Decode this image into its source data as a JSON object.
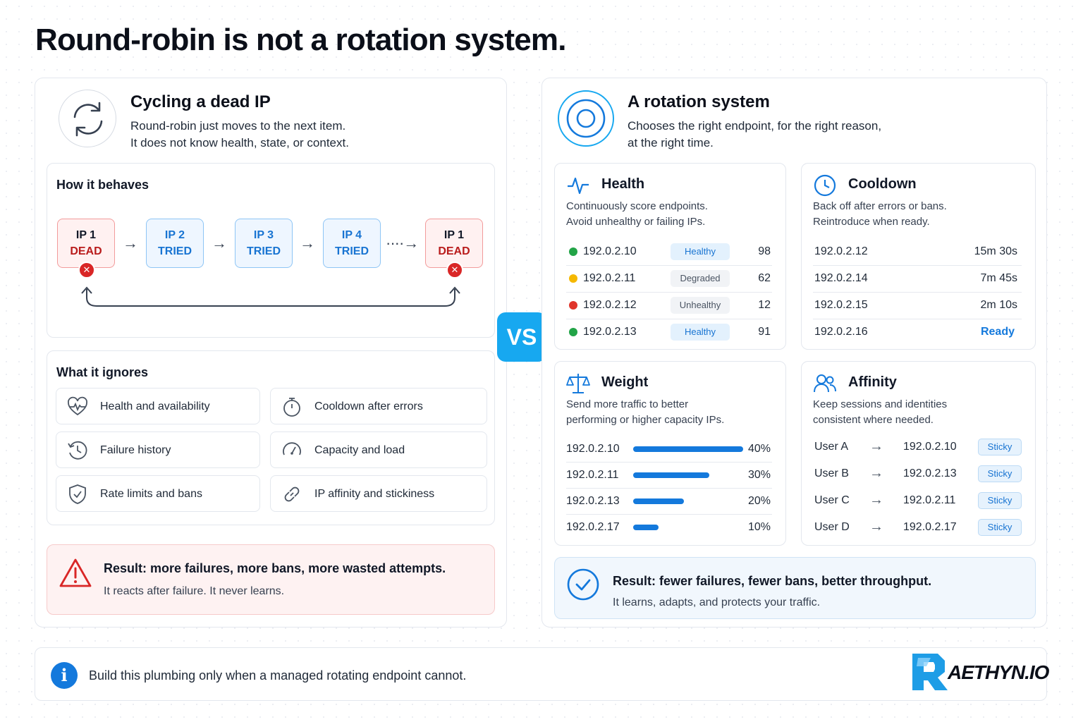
{
  "title": "Round-robin is not a rotation system.",
  "left": {
    "title": "Cycling a dead IP",
    "desc1": "Round-robin just moves to the next item.",
    "desc2": "It does not know health, state, or context.",
    "behaves_title": "How it behaves",
    "chain": [
      {
        "label": "IP 1",
        "state": "DEAD"
      },
      {
        "label": "IP 2",
        "state": "TRIED"
      },
      {
        "label": "IP 3",
        "state": "TRIED"
      },
      {
        "label": "IP 4",
        "state": "TRIED"
      },
      {
        "label": "IP 1",
        "state": "DEAD"
      }
    ],
    "ignores_title": "What it ignores",
    "ignores": [
      {
        "label": "Health and availability",
        "icon": "heart-pulse-icon"
      },
      {
        "label": "Cooldown after errors",
        "icon": "stopwatch-icon"
      },
      {
        "label": "Failure history",
        "icon": "clock-history-icon"
      },
      {
        "label": "Capacity and load",
        "icon": "gauge-icon"
      },
      {
        "label": "Rate limits and bans",
        "icon": "shield-check-icon"
      },
      {
        "label": "IP affinity and stickiness",
        "icon": "link-icon"
      }
    ],
    "result_title": "Result: more failures, more bans, more wasted attempts.",
    "result_sub": "It reacts after failure. It never learns."
  },
  "vs": "VS",
  "right": {
    "title": "A rotation system",
    "desc1": "Chooses the right endpoint, for the right reason,",
    "desc2": "at the right time.",
    "health": {
      "title": "Health",
      "desc1": "Continuously score endpoints.",
      "desc2": "Avoid unhealthy or failing IPs.",
      "rows": [
        {
          "ip": "192.0.2.10",
          "status": "Healthy",
          "score": "98",
          "dot": "#22a447"
        },
        {
          "ip": "192.0.2.11",
          "status": "Degraded",
          "score": "62",
          "dot": "#f5b800"
        },
        {
          "ip": "192.0.2.12",
          "status": "Unhealthy",
          "score": "12",
          "dot": "#e0352b"
        },
        {
          "ip": "192.0.2.13",
          "status": "Healthy",
          "score": "91",
          "dot": "#22a447"
        }
      ]
    },
    "cooldown": {
      "title": "Cooldown",
      "desc1": "Back off after errors or bans.",
      "desc2": "Reintroduce when ready.",
      "rows": [
        {
          "ip": "192.0.2.12",
          "time": "15m 30s"
        },
        {
          "ip": "192.0.2.14",
          "time": "7m 45s"
        },
        {
          "ip": "192.0.2.15",
          "time": "2m 10s"
        },
        {
          "ip": "192.0.2.16",
          "time": "Ready"
        }
      ]
    },
    "weight": {
      "title": "Weight",
      "desc1": "Send more traffic to better",
      "desc2": "performing or higher capacity IPs.",
      "rows": [
        {
          "ip": "192.0.2.10",
          "pct": "40%",
          "value": 40
        },
        {
          "ip": "192.0.2.11",
          "pct": "30%",
          "value": 30
        },
        {
          "ip": "192.0.2.13",
          "pct": "20%",
          "value": 20
        },
        {
          "ip": "192.0.2.17",
          "pct": "10%",
          "value": 10
        }
      ]
    },
    "affinity": {
      "title": "Affinity",
      "desc1": "Keep sessions and identities",
      "desc2": "consistent where needed.",
      "rows": [
        {
          "user": "User A",
          "ip": "192.0.2.10",
          "tag": "Sticky"
        },
        {
          "user": "User B",
          "ip": "192.0.2.13",
          "tag": "Sticky"
        },
        {
          "user": "User C",
          "ip": "192.0.2.11",
          "tag": "Sticky"
        },
        {
          "user": "User D",
          "ip": "192.0.2.17",
          "tag": "Sticky"
        }
      ]
    },
    "result_title": "Result: fewer failures, fewer bans, better throughput.",
    "result_sub": "It learns, adapts, and protects your traffic."
  },
  "footer": {
    "text": "Build this plumbing only when a managed rotating endpoint cannot.",
    "logo": "AETHYN.IO"
  },
  "colors": {
    "accent": "#1479dc",
    "dead": "#d92626",
    "vs": "#17a8f0"
  }
}
